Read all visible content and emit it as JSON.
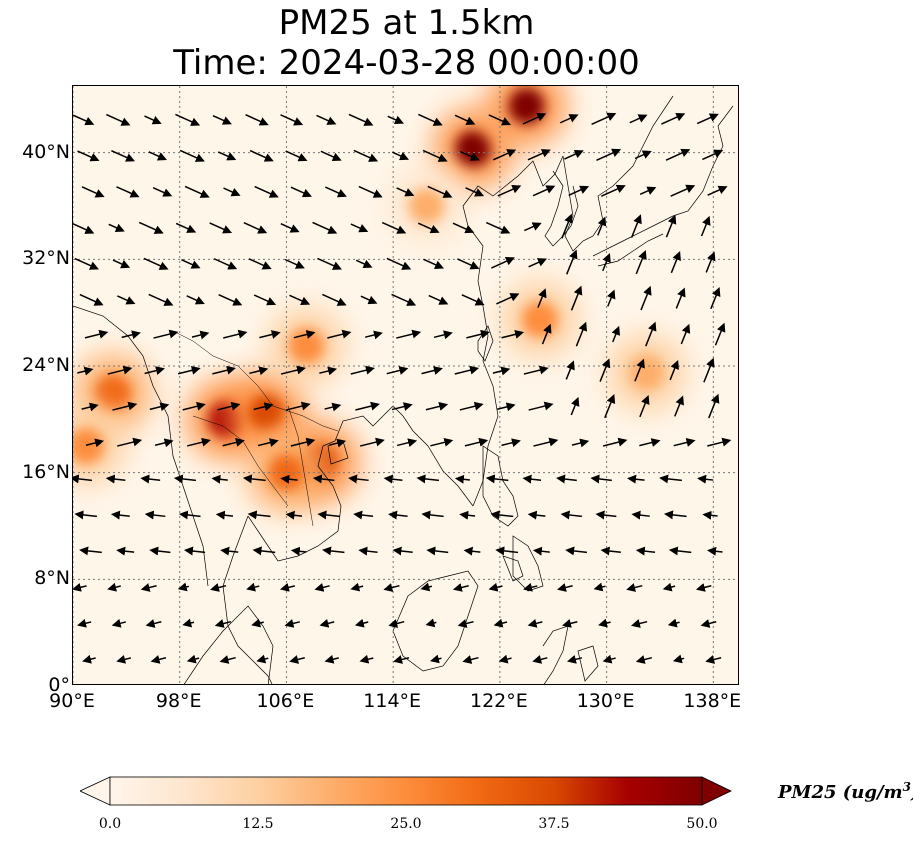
{
  "title": {
    "line1": "PM25 at 1.5km",
    "line2": "Time: 2024-03-28 00:00:00"
  },
  "map": {
    "lon_range": [
      90,
      140
    ],
    "lat_range": [
      0,
      45
    ],
    "gridlines": true,
    "lat_ticks": [
      {
        "value": 0,
        "label": "0°"
      },
      {
        "value": 8,
        "label": "8°N"
      },
      {
        "value": 16,
        "label": "16°N"
      },
      {
        "value": 24,
        "label": "24°N"
      },
      {
        "value": 32,
        "label": "32°N"
      },
      {
        "value": 40,
        "label": "40°N"
      }
    ],
    "lon_ticks": [
      {
        "value": 90,
        "label": "90°E"
      },
      {
        "value": 98,
        "label": "98°E"
      },
      {
        "value": 106,
        "label": "106°E"
      },
      {
        "value": 114,
        "label": "114°E"
      },
      {
        "value": 122,
        "label": "122°E"
      },
      {
        "value": 130,
        "label": "130°E"
      },
      {
        "value": 138,
        "label": "138°E"
      }
    ],
    "pm25_hotspots": [
      {
        "lon": 120.0,
        "lat": 40.3,
        "value": 48
      },
      {
        "lon": 124.0,
        "lat": 43.5,
        "value": 50
      },
      {
        "lon": 101.5,
        "lat": 20.0,
        "value": 45
      },
      {
        "lon": 104.5,
        "lat": 20.5,
        "value": 40
      },
      {
        "lon": 108.5,
        "lat": 16.8,
        "value": 40
      },
      {
        "lon": 93.0,
        "lat": 22.0,
        "value": 32
      },
      {
        "lon": 91.0,
        "lat": 18.0,
        "value": 26
      },
      {
        "lon": 106.0,
        "lat": 16.0,
        "value": 30
      },
      {
        "lon": 107.5,
        "lat": 25.5,
        "value": 24
      },
      {
        "lon": 133.0,
        "lat": 23.5,
        "value": 20
      },
      {
        "lon": 125.0,
        "lat": 27.5,
        "value": 22
      },
      {
        "lon": 116.5,
        "lat": 36.0,
        "value": 16
      }
    ],
    "wind_field_description_colors": {
      "arrow": "#000000",
      "coast": "#000000",
      "grid": "#777777"
    }
  },
  "colorbar": {
    "label": "PM25 (ug/m",
    "label_sup": "3",
    "label_close": ")",
    "min": 0,
    "max": 50,
    "ticks": [
      {
        "value": 0,
        "label": "0.0"
      },
      {
        "value": 12.5,
        "label": "12.5"
      },
      {
        "value": 25,
        "label": "25.0"
      },
      {
        "value": 37.5,
        "label": "37.5"
      },
      {
        "value": 50,
        "label": "50.0"
      }
    ],
    "cmap": [
      "#fff5eb",
      "#fee6ce",
      "#fdd0a2",
      "#fdae6b",
      "#fd8d3c",
      "#f16913",
      "#d94801",
      "#a60000",
      "#7f0000"
    ]
  }
}
